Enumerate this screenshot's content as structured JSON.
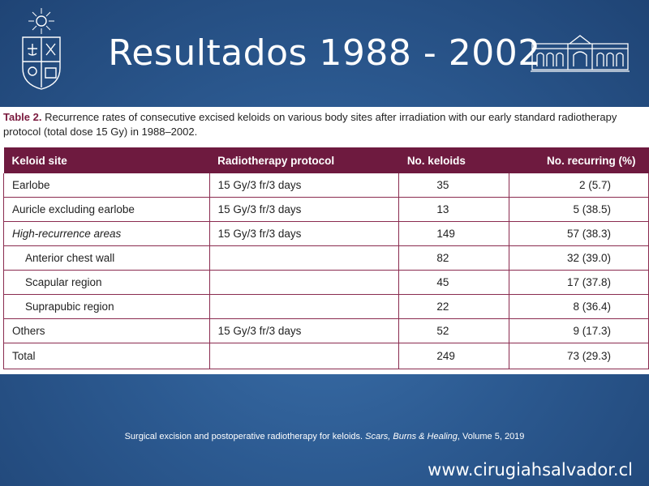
{
  "slide": {
    "title": "Resultados 1988 - 2002",
    "website": "www.cirugiahsalvador.cl"
  },
  "table": {
    "label": "Table 2.",
    "caption": "Recurrence rates of consecutive excised keloids on various body sites after irradiation with our early standard radiotherapy protocol (total dose 15 Gy) in 1988–2002.",
    "headers": [
      "Keloid site",
      "Radiotherapy protocol",
      "No. keloids",
      "No. recurring (%)"
    ],
    "rows": [
      {
        "site": "Earlobe",
        "protocol": "15 Gy/3 fr/3 days",
        "keloids": "35",
        "recurring": "2 (5.7)"
      },
      {
        "site": "Auricle excluding earlobe",
        "protocol": "15 Gy/3 fr/3 days",
        "keloids": "13",
        "recurring": "5 (38.5)"
      },
      {
        "site": "High-recurrence areas",
        "protocol": "15 Gy/3 fr/3 days",
        "keloids": "149",
        "recurring": "57 (38.3)"
      },
      {
        "site": "Anterior chest wall",
        "protocol": "",
        "keloids": "82",
        "recurring": "32 (39.0)"
      },
      {
        "site": "Scapular region",
        "protocol": "",
        "keloids": "45",
        "recurring": "17 (37.8)"
      },
      {
        "site": "Suprapubic region",
        "protocol": "",
        "keloids": "22",
        "recurring": "8 (36.4)"
      },
      {
        "site": "Others",
        "protocol": "15 Gy/3 fr/3 days",
        "keloids": "52",
        "recurring": "9 (17.3)"
      },
      {
        "site": "Total",
        "protocol": "",
        "keloids": "249",
        "recurring": "73 (29.3)"
      }
    ]
  },
  "citation": {
    "text": "Surgical excision and postoperative radiotherapy for keloids.",
    "journal": "Scars, Burns & Healing",
    "volume": ", Volume 5, 2019"
  },
  "icons": {
    "left_logo": "university-crest-icon",
    "right_logo": "building-facade-icon"
  },
  "colors": {
    "background": "#2c5a91",
    "table_header": "#6e1a3f",
    "caption_label": "#7b1b3f"
  }
}
